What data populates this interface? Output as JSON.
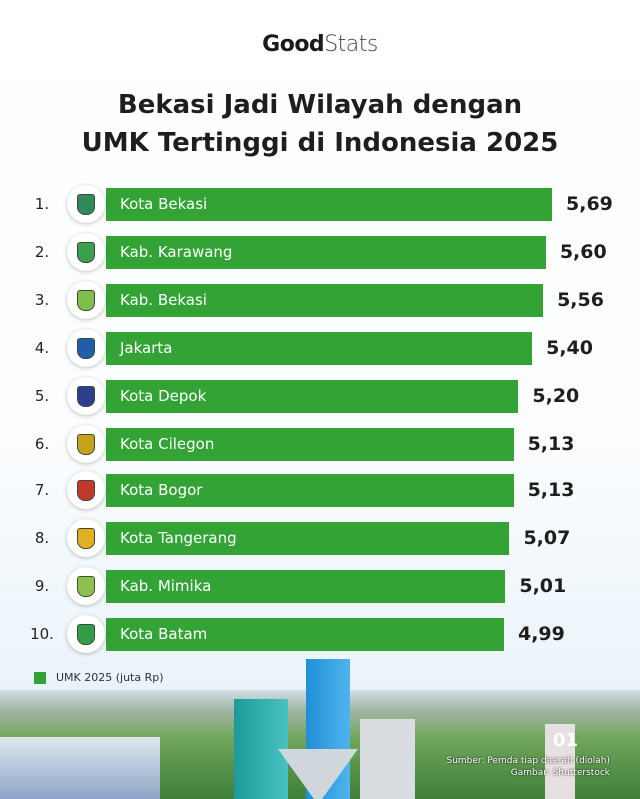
{
  "brand": {
    "logo_bold": "Good",
    "logo_light": "Stats"
  },
  "chart_data": {
    "type": "bar",
    "orientation": "horizontal",
    "title": "Bekasi Jadi Wilayah dengan UMK Tertinggi di Indonesia 2025",
    "title_lines": [
      "Bekasi Jadi Wilayah dengan",
      "UMK Tertinggi di Indonesia 2025"
    ],
    "ranks": [
      "1.",
      "2.",
      "3.",
      "4.",
      "5.",
      "6.",
      "7.",
      "8.",
      "9.",
      "10."
    ],
    "categories": [
      "Kota Bekasi",
      "Kab. Karawang",
      "Kab. Bekasi",
      "Jakarta",
      "Kota Depok",
      "Kota Cilegon",
      "Kota Bogor",
      "Kota Tangerang",
      "Kab. Mimika",
      "Kota Batam"
    ],
    "value_labels": [
      "5,69",
      "5,60",
      "5,56",
      "5,40",
      "5,20",
      "5,13",
      "5,13",
      "5,07",
      "5,01",
      "4,99"
    ],
    "series": [
      {
        "name": "UMK 2025 (juta Rp)",
        "values": [
          5.69,
          5.6,
          5.56,
          5.4,
          5.2,
          5.13,
          5.13,
          5.07,
          5.01,
          4.99
        ],
        "color": "#33a336"
      }
    ],
    "legend_position": "bottom-left",
    "grid": false
  },
  "footer": {
    "page_number": "01",
    "source": "Sumber: Pemda tiap daerah (diolah)",
    "image_credit": "Gambar: Shutterstock"
  }
}
